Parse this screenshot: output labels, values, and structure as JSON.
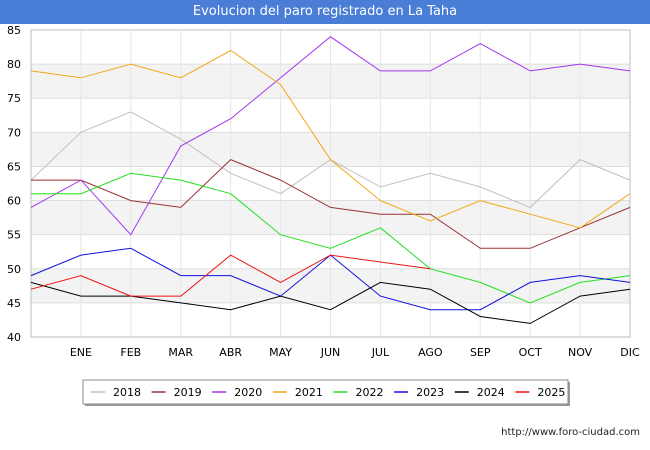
{
  "chart_data": {
    "type": "line",
    "title": "Evolucion del paro registrado en La Taha",
    "categories": [
      "",
      "ENE",
      "FEB",
      "MAR",
      "ABR",
      "MAY",
      "JUN",
      "JUL",
      "AGO",
      "SEP",
      "OCT",
      "NOV",
      "DIC"
    ],
    "ylim": [
      40,
      85
    ],
    "yticks": [
      40,
      45,
      50,
      55,
      60,
      65,
      70,
      75,
      80,
      85
    ],
    "grid": true,
    "legend_position": "bottom",
    "series": [
      {
        "name": "2018",
        "color": "#c0c0c0",
        "values": [
          63,
          70,
          73,
          69,
          64,
          61,
          66,
          62,
          64,
          62,
          59,
          66,
          63
        ]
      },
      {
        "name": "2019",
        "color": "#993333",
        "values": [
          63,
          63,
          60,
          59,
          66,
          63,
          59,
          58,
          58,
          53,
          53,
          56,
          59
        ]
      },
      {
        "name": "2020",
        "color": "#a335ee",
        "values": [
          59,
          63,
          55,
          68,
          72,
          78,
          84,
          79,
          79,
          83,
          79,
          80,
          79
        ]
      },
      {
        "name": "2021",
        "color": "#f0a81a",
        "values": [
          79,
          78,
          80,
          78,
          82,
          77,
          66,
          60,
          57,
          60,
          58,
          56,
          61
        ]
      },
      {
        "name": "2022",
        "color": "#22e022",
        "values": [
          61,
          61,
          64,
          63,
          61,
          55,
          53,
          56,
          50,
          48,
          45,
          48,
          49
        ]
      },
      {
        "name": "2023",
        "color": "#1010e0",
        "values": [
          49,
          52,
          53,
          49,
          49,
          46,
          52,
          46,
          44,
          44,
          48,
          49,
          48
        ]
      },
      {
        "name": "2024",
        "color": "#000000",
        "values": [
          48,
          46,
          46,
          45,
          44,
          46,
          44,
          48,
          47,
          43,
          42,
          46,
          47
        ]
      },
      {
        "name": "2025",
        "color": "#ee1111",
        "values": [
          47,
          49,
          46,
          46,
          52,
          48,
          52,
          51,
          50,
          null,
          null,
          null,
          null
        ]
      }
    ]
  },
  "footer": {
    "source": "http://www.foro-ciudad.com"
  }
}
